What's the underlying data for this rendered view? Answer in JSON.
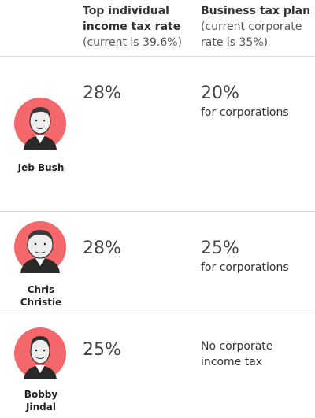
{
  "header": {
    "col1_title": "Top individual income tax rate",
    "col1_sub": "(current is 39.6%)",
    "col2_title": "Business tax plan",
    "col2_sub": "(current corporate rate is 35%)"
  },
  "candidates": [
    {
      "name": "Jeb Bush",
      "income_rate": "28%",
      "business_rate": "20%",
      "business_note": "for corporations"
    },
    {
      "name": "Chris Christie",
      "income_rate": "28%",
      "business_rate": "25%",
      "business_note": "for corporations"
    },
    {
      "name": "Bobby Jindal",
      "income_rate": "25%",
      "business_rate": "",
      "business_note": "No corporate income tax"
    }
  ],
  "colors": {
    "portrait_circle": "#f4676a",
    "divider": "#dcdcdc"
  }
}
